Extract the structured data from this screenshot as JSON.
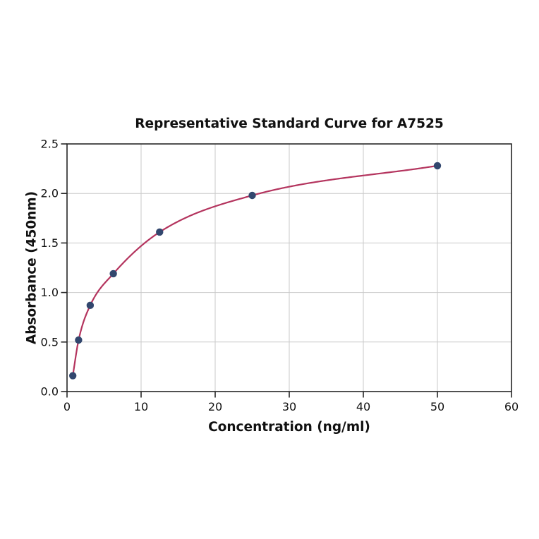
{
  "chart_data": {
    "type": "scatter",
    "title": "Representative Standard Curve for A7525",
    "xlabel": "Concentration (ng/ml)",
    "ylabel": "Absorbance (450nm)",
    "series": [
      {
        "name": "standard-curve",
        "x": [
          0.78,
          1.56,
          3.13,
          6.25,
          12.5,
          25,
          50
        ],
        "y": [
          0.16,
          0.52,
          0.87,
          1.19,
          1.61,
          1.98,
          2.28
        ]
      }
    ],
    "fit_curve": "smooth saturating 4PL-style fit through all points, drawn from first to last point",
    "xlim": [
      0,
      60
    ],
    "ylim": [
      0,
      2.5
    ],
    "xticks": [
      0,
      10,
      20,
      30,
      40,
      50,
      60
    ],
    "yticks": [
      0,
      0.5,
      1.0,
      1.5,
      2.0,
      2.5
    ],
    "xtick_labels": [
      "0",
      "10",
      "20",
      "30",
      "40",
      "50",
      "60"
    ],
    "ytick_labels": [
      "0.0",
      "0.5",
      "1.0",
      "1.5",
      "2.0",
      "2.5"
    ],
    "grid": true,
    "legend": false,
    "colors": {
      "curve": "#b4345e",
      "marker": "#32476e",
      "grid": "#c9c9c9",
      "spine": "#262626",
      "background": "#ffffff"
    }
  }
}
